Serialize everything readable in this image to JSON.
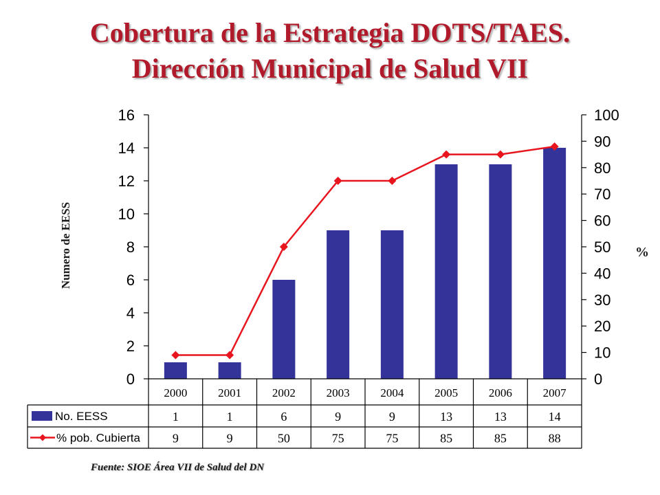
{
  "title_line1": "Cobertura de la  Estrategia DOTS/TAES.",
  "title_line2": "Dirección Municipal de Salud  VII",
  "source": "Fuente: SIOE Área VII de Salud del DN",
  "colors": {
    "title": "#b01a2a",
    "bars": "#333399",
    "line": "#e8141e"
  },
  "chart_data": {
    "type": "bar",
    "categories": [
      "2000",
      "2001",
      "2002",
      "2003",
      "2004",
      "2005",
      "2006",
      "2007"
    ],
    "series": [
      {
        "name": "No. EESS",
        "type": "bar",
        "axis": "left",
        "values": [
          1,
          1,
          6,
          9,
          9,
          13,
          13,
          14
        ]
      },
      {
        "name": "% pob. Cubierta",
        "type": "line",
        "axis": "right",
        "values": [
          9,
          9,
          50,
          75,
          75,
          85,
          85,
          88
        ]
      }
    ],
    "ylabel": "Numero de EESS",
    "y2label": "%",
    "ylim": [
      0,
      16
    ],
    "y2lim": [
      0,
      100
    ],
    "yticks": [
      0,
      2,
      4,
      6,
      8,
      10,
      12,
      14,
      16
    ],
    "y2ticks": [
      0,
      10,
      20,
      30,
      40,
      50,
      60,
      70,
      80,
      90,
      100
    ],
    "data_table": true,
    "grid": false
  }
}
